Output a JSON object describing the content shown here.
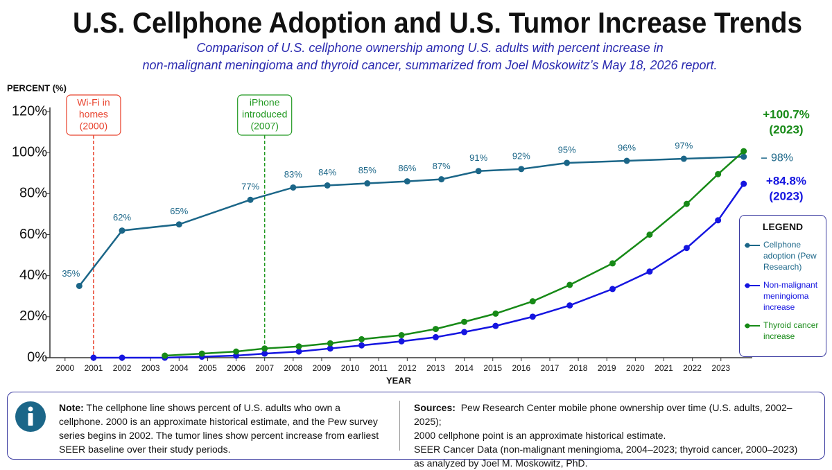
{
  "chart_data": {
    "type": "line",
    "title": "U.S. Cellphone Adoption and U.S. Tumor Increase Trends",
    "subtitle": [
      "Comparison of U.S. cellphone ownership among U.S. adults with percent increase in",
      "non-malignant meningioma and thyroid cancer, summarized from Joel Moskowitz’s May 18, 2026 report."
    ],
    "y_label": "PERCENT (%)",
    "x_label": "YEAR",
    "xlim": [
      1999.3,
      2024.1
    ],
    "xticks": [
      2000,
      2001,
      2002,
      2003,
      2004,
      2005,
      2006,
      2007,
      2008,
      2009,
      2010,
      2011,
      2012,
      2013,
      2014,
      2015,
      2016,
      2017,
      2018,
      2019,
      2020,
      2021,
      2022,
      2023
    ],
    "ylim": [
      0,
      120
    ],
    "yticks": [
      {
        "value": 0,
        "label": "0%"
      },
      {
        "value": 20,
        "label": "20%"
      },
      {
        "value": 40,
        "label": "40%"
      },
      {
        "value": 60,
        "label": "60%"
      },
      {
        "value": 80,
        "label": "80%"
      },
      {
        "value": 100,
        "label": "100%"
      },
      {
        "value": 120,
        "label": "120%"
      }
    ],
    "grid": false,
    "series": [
      {
        "name": "Cellphone adoption (Pew Research)",
        "color": "#1b6688",
        "x": [
          2000.5,
          2002,
          2004,
          2006.5,
          2008,
          2009.2,
          2010.6,
          2012,
          2013.2,
          2014.5,
          2016,
          2017.6,
          2019.7,
          2021.7,
          2023.8
        ],
        "values": [
          35,
          62,
          65,
          77,
          83,
          84,
          85,
          86,
          87,
          91,
          92,
          95,
          96,
          97,
          98
        ],
        "value_labels": [
          "35%",
          "62%",
          "65%",
          "77%",
          "83%",
          "84%",
          "85%",
          "86%",
          "87%",
          "91%",
          "92%",
          "95%",
          "96%",
          "97%",
          "98%"
        ]
      },
      {
        "name": "Non-malignant meningioma increase",
        "color": "#1515e0",
        "x": [
          2001,
          2002,
          2003.5,
          2004.8,
          2006,
          2007,
          2008.2,
          2009.3,
          2010.4,
          2011.8,
          2013,
          2014,
          2015.1,
          2016.4,
          2017.7,
          2019.2,
          2020.5,
          2021.8,
          2022.9,
          2023.8
        ],
        "values": [
          0,
          0,
          0,
          0.5,
          1,
          2,
          3,
          4.5,
          6,
          8,
          10,
          12.5,
          15.5,
          20,
          25.5,
          33.5,
          42,
          53.5,
          67,
          84.8
        ],
        "value_labels": [
          null,
          null,
          null,
          null,
          null,
          null,
          null,
          null,
          null,
          null,
          null,
          null,
          null,
          null,
          null,
          null,
          null,
          null,
          null,
          "+84.8%"
        ],
        "end_note": "(2023)"
      },
      {
        "name": "Thyroid cancer increase",
        "color": "#178a17",
        "x": [
          2003.5,
          2004.8,
          2006,
          2007,
          2008.2,
          2009.3,
          2010.4,
          2011.8,
          2013,
          2014,
          2015.1,
          2016.4,
          2017.7,
          2019.2,
          2020.5,
          2021.8,
          2022.9,
          2023.8
        ],
        "values": [
          1,
          2,
          3,
          4.5,
          5.5,
          7,
          9,
          11,
          14,
          17.5,
          21.5,
          27.5,
          35.5,
          46,
          60,
          75,
          89.5,
          100.7
        ],
        "value_labels": [
          null,
          null,
          null,
          null,
          null,
          null,
          null,
          null,
          null,
          null,
          null,
          null,
          null,
          null,
          null,
          null,
          null,
          "+100.7%"
        ],
        "end_note": "(2023)"
      }
    ],
    "legend_title": "LEGEND",
    "legend_position": "right",
    "annotations": [
      {
        "x": 2001,
        "lines": [
          "Wi-Fi in",
          "homes",
          "(2000)"
        ],
        "color": "#e8432e"
      },
      {
        "x": 2007,
        "lines": [
          "iPhone",
          "introduced",
          "(2007)"
        ],
        "color": "#229922"
      }
    ]
  },
  "note": {
    "label": "Note:",
    "text": "The cellphone line shows percent of U.S. adults who own a cellphone. 2000 is an approximate historical estimate, and the Pew survey series begins in 2002. The tumor lines show percent increase from earliest SEER baseline over their study periods."
  },
  "sources": {
    "label": "Sources:",
    "lines": [
      "Pew Research Center mobile phone ownership over time (U.S. adults, 2002–2025);",
      "2000 cellphone point is an approximate historical estimate.",
      "SEER Cancer Data (non-malignant meningioma, 2004–2023; thyroid cancer, 2000–2023)",
      "as analyzed by Joel M. Moskowitz, PhD."
    ]
  }
}
